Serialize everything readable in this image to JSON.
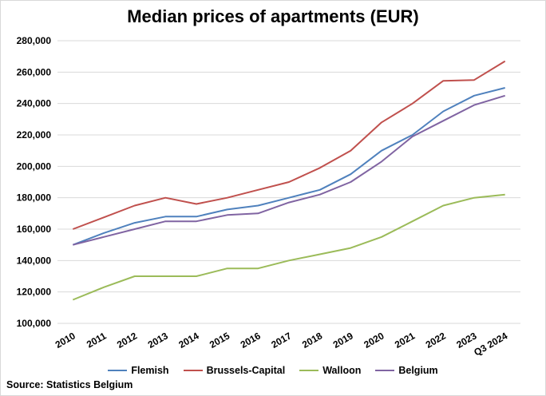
{
  "colors": {
    "Flemish": "#4f81bd",
    "Brussels-Capital": "#c0504d",
    "Walloon": "#9bbb59",
    "Belgium": "#8064a2",
    "grid": "#d9d9d9"
  },
  "source": "Source: Statistics Belgium",
  "chart_data": {
    "type": "line",
    "title": "Median prices of apartments (EUR)",
    "categories": [
      "2010",
      "2011",
      "2012",
      "2013",
      "2014",
      "2015",
      "2016",
      "2017",
      "2018",
      "2019",
      "2020",
      "2021",
      "2022",
      "2023",
      "Q3 2024"
    ],
    "ylim": [
      100000,
      280000
    ],
    "yticks": [
      "100,000",
      "120,000",
      "140,000",
      "160,000",
      "180,000",
      "200,000",
      "220,000",
      "240,000",
      "260,000",
      "280,000"
    ],
    "yticks_values": [
      100000,
      120000,
      140000,
      160000,
      180000,
      200000,
      220000,
      240000,
      260000,
      280000
    ],
    "grid": "horizontal",
    "legend": "bottom",
    "series": [
      {
        "name": "Flemish",
        "values": [
          150000,
          157500,
          164000,
          168000,
          168000,
          172500,
          175000,
          180000,
          185000,
          195000,
          210000,
          220000,
          235000,
          245000,
          250000
        ]
      },
      {
        "name": "Brussels-Capital",
        "values": [
          160000,
          167500,
          175000,
          180000,
          176000,
          180000,
          185000,
          190000,
          199000,
          210000,
          228000,
          240000,
          254500,
          255000,
          267000
        ]
      },
      {
        "name": "Walloon",
        "values": [
          115000,
          123000,
          130000,
          130000,
          130000,
          135000,
          135000,
          140000,
          144000,
          148000,
          155000,
          165000,
          175000,
          180000,
          182000
        ]
      },
      {
        "name": "Belgium",
        "values": [
          150000,
          155000,
          160000,
          165000,
          165000,
          169000,
          170000,
          177000,
          182000,
          190000,
          203000,
          219000,
          229000,
          239000,
          245000
        ]
      }
    ]
  }
}
